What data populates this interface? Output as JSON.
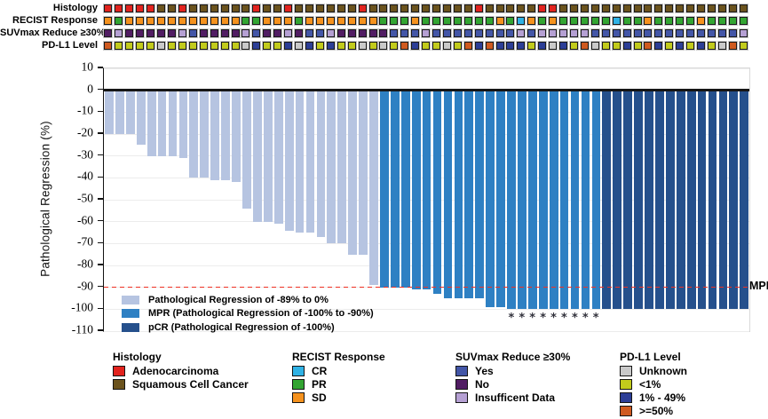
{
  "tracks": {
    "rows": [
      {
        "label": "Histology",
        "cells": [
          "A",
          "A",
          "A",
          "A",
          "A",
          "S",
          "S",
          "A",
          "S",
          "S",
          "S",
          "S",
          "S",
          "S",
          "A",
          "S",
          "S",
          "A",
          "S",
          "S",
          "S",
          "S",
          "S",
          "S",
          "A",
          "S",
          "S",
          "S",
          "S",
          "S",
          "S",
          "S",
          "S",
          "S",
          "S",
          "A",
          "S",
          "S",
          "S",
          "S",
          "S",
          "A",
          "A",
          "S",
          "S",
          "S",
          "S",
          "S",
          "S",
          "S",
          "S",
          "S",
          "S",
          "S",
          "S",
          "S",
          "S",
          "S",
          "S",
          "S",
          "S"
        ]
      },
      {
        "label": "RECIST Response",
        "cells": [
          "SD",
          "PR",
          "SD",
          "SD",
          "SD",
          "SD",
          "SD",
          "SD",
          "SD",
          "SD",
          "SD",
          "SD",
          "SD",
          "PR",
          "PR",
          "SD",
          "SD",
          "SD",
          "PR",
          "SD",
          "SD",
          "SD",
          "SD",
          "SD",
          "SD",
          "SD",
          "PR",
          "PR",
          "PR",
          "SD",
          "PR",
          "PR",
          "PR",
          "PR",
          "PR",
          "PR",
          "PR",
          "SD",
          "PR",
          "CR",
          "SD",
          "PR",
          "SD",
          "PR",
          "PR",
          "PR",
          "PR",
          "PR",
          "CR",
          "PR",
          "PR",
          "SD",
          "PR",
          "PR",
          "PR",
          "PR",
          "SD",
          "PR",
          "PR",
          "PR",
          "PR"
        ]
      },
      {
        "label": "SUVmax Reduce ≥30%",
        "cells": [
          "N",
          "I",
          "N",
          "N",
          "N",
          "N",
          "N",
          "I",
          "Y",
          "N",
          "N",
          "N",
          "N",
          "I",
          "Y",
          "N",
          "N",
          "I",
          "N",
          "Y",
          "Y",
          "I",
          "N",
          "N",
          "N",
          "N",
          "N",
          "Y",
          "Y",
          "Y",
          "I",
          "Y",
          "Y",
          "Y",
          "Y",
          "Y",
          "Y",
          "Y",
          "Y",
          "I",
          "Y",
          "I",
          "I",
          "I",
          "I",
          "I",
          "Y",
          "Y",
          "Y",
          "Y",
          "Y",
          "Y",
          "Y",
          "Y",
          "Y",
          "Y",
          "Y",
          "Y",
          "Y",
          "Y",
          "I"
        ]
      },
      {
        "label": "PD-L1 Level",
        "cells": [
          "H",
          "L",
          "L",
          "L",
          "L",
          "U",
          "L",
          "L",
          "L",
          "L",
          "L",
          "L",
          "L",
          "U",
          "M",
          "L",
          "L",
          "M",
          "U",
          "M",
          "L",
          "M",
          "L",
          "L",
          "U",
          "L",
          "U",
          "L",
          "H",
          "M",
          "L",
          "L",
          "U",
          "L",
          "H",
          "M",
          "H",
          "M",
          "M",
          "M",
          "L",
          "M",
          "U",
          "M",
          "L",
          "H",
          "U",
          "L",
          "L",
          "M",
          "L",
          "H",
          "M",
          "L",
          "M",
          "L",
          "M",
          "L",
          "U",
          "H",
          "L"
        ]
      }
    ],
    "palette": {
      "A": {
        "label": "Adenocarcinoma",
        "color": "#e2231e"
      },
      "S": {
        "label": "Squamous Cell Cancer",
        "color": "#6b531d"
      },
      "CR": {
        "label": "CR",
        "color": "#2fb2e5"
      },
      "PR": {
        "label": "PR",
        "color": "#33a532"
      },
      "SD": {
        "label": "SD",
        "color": "#f5921e"
      },
      "Y": {
        "label": "Yes",
        "color": "#4356a7"
      },
      "N": {
        "label": "No",
        "color": "#511d63"
      },
      "I": {
        "label": "Insufficent Data",
        "color": "#b5a0d3"
      },
      "U": {
        "label": "Unknown",
        "color": "#c9c9c9"
      },
      "L": {
        "label": "<1%",
        "color": "#c2cb1c"
      },
      "M": {
        "label": "1% - 49%",
        "color": "#2c3e96"
      },
      "H": {
        "label": ">=50%",
        "color": "#cf5a20"
      }
    }
  },
  "chart_data": {
    "type": "bar",
    "title": "",
    "xlabel": "",
    "ylabel": "Pathological Regression (%)",
    "ylim": [
      -110,
      10
    ],
    "yticks": [
      10,
      0,
      -10,
      -20,
      -30,
      -40,
      -50,
      -60,
      -70,
      -80,
      -90,
      -100,
      -110
    ],
    "grid": "horizontal-faint",
    "values": [
      -20,
      -20,
      -20,
      -25,
      -30,
      -30,
      -30,
      -31,
      -40,
      -40,
      -41,
      -41,
      -42,
      -54,
      -60,
      -60,
      -61,
      -64,
      -65,
      -65,
      -67,
      -70,
      -70,
      -75,
      -75,
      -89,
      -90,
      -90,
      -90,
      -91,
      -91,
      -93,
      -95,
      -95,
      -95,
      -95,
      -99,
      -99,
      -100,
      -100,
      -100,
      -100,
      -100,
      -100,
      -100,
      -100,
      -100,
      -100,
      -100,
      -100,
      -100,
      -100,
      -100,
      -100,
      -100,
      -100,
      -100,
      -100,
      -100,
      -100,
      -100
    ],
    "groups": {
      "light_last_col": 26,
      "mpr_last_col": 47,
      "total_cols": 61
    },
    "asterisk_cols": [
      39,
      40,
      41,
      42,
      43,
      44,
      45,
      46,
      47
    ],
    "asterisk_glyph": "*",
    "bar_colors": {
      "light": "#b6c4e1",
      "mpr": "#2e80c3",
      "pcr": "#25508c"
    },
    "reference_line": {
      "value": -90,
      "label": "MPR",
      "color": "#ee3124"
    },
    "legend": [
      {
        "key": "light",
        "label": "Pathological Regression of -89% to 0%",
        "color": "#b6c4e1"
      },
      {
        "key": "mpr",
        "label": "MPR (Pathological Regression of -100% to -90%)",
        "color": "#2e80c3"
      },
      {
        "key": "pcr",
        "label": "pCR (Pathological Regression of -100%)",
        "color": "#25508c"
      }
    ],
    "legend_position": "lower-left-inside"
  },
  "bottom_legend": [
    {
      "title": "Histology",
      "items": [
        {
          "label": "Adenocarcinoma",
          "color": "#e2231e"
        },
        {
          "label": "Squamous Cell Cancer",
          "color": "#6b531d"
        }
      ]
    },
    {
      "title": "RECIST Response",
      "items": [
        {
          "label": "CR",
          "color": "#2fb2e5"
        },
        {
          "label": "PR",
          "color": "#33a532"
        },
        {
          "label": "SD",
          "color": "#f5921e"
        }
      ]
    },
    {
      "title": "SUVmax Reduce ≥30%",
      "items": [
        {
          "label": "Yes",
          "color": "#4356a7"
        },
        {
          "label": "No",
          "color": "#511d63"
        },
        {
          "label": "Insufficent Data",
          "color": "#b5a0d3"
        }
      ]
    },
    {
      "title": "PD-L1 Level",
      "items": [
        {
          "label": "Unknown",
          "color": "#c9c9c9"
        },
        {
          "label": "<1%",
          "color": "#c2cb1c"
        },
        {
          "label": "1% - 49%",
          "color": "#2c3e96"
        },
        {
          "label": ">=50%",
          "color": "#cf5a20"
        }
      ]
    }
  ]
}
